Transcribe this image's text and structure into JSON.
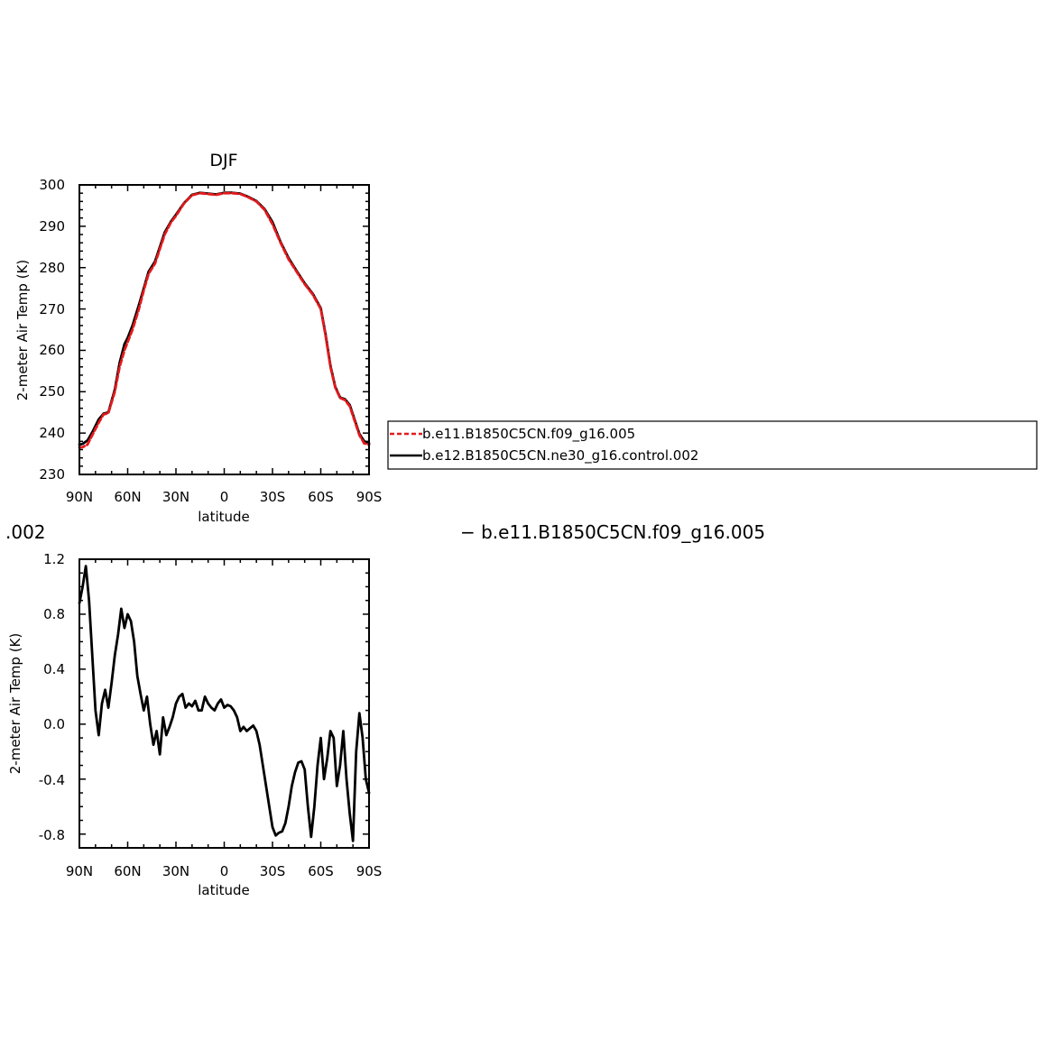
{
  "top": {
    "title": "DJF",
    "ylabel": "2-meter Air Temp (K)",
    "xlabel": "latitude",
    "xticks": [
      "90N",
      "60N",
      "30N",
      "0",
      "30S",
      "60S",
      "90S"
    ],
    "yticks": [
      "300",
      "290",
      "280",
      "270",
      "260",
      "250",
      "240",
      "230"
    ],
    "legend": [
      "b.e11.B1850C5CN.f09_g16.005",
      "b.e12.B1850C5CN.ne30_g16.control.002"
    ]
  },
  "bottom": {
    "ylabel": "2-meter Air Temp (K)",
    "xlabel": "latitude",
    "xticks": [
      "90N",
      "60N",
      "30N",
      "0",
      "30S",
      "60S",
      "90S"
    ],
    "yticks": [
      "1.2",
      "0.8",
      "0.4",
      "0.0",
      "-0.4",
      "-0.8"
    ],
    "title_left_fragment": ".002",
    "title_right_fragment": "− b.e11.B1850C5CN.f09_g16.005"
  },
  "colors": {
    "red_series": "#e41a1c",
    "black_series": "#000000"
  },
  "chart_data": [
    {
      "type": "line",
      "title": "DJF",
      "xlabel": "latitude",
      "ylabel": "2-meter Air Temp (K)",
      "xlim": [
        90,
        -90
      ],
      "ylim": [
        230,
        300
      ],
      "x_note": "latitude in degrees, positive = N, negative = S",
      "series": [
        {
          "name": "b.e11.B1850C5CN.f09_g16.005",
          "color": "#e41a1c",
          "dashed": true,
          "x": [
            90,
            88,
            85,
            82,
            78,
            75,
            72,
            68,
            65,
            62,
            60,
            57,
            53,
            50,
            47,
            43,
            40,
            37,
            33,
            30,
            25,
            20,
            15,
            10,
            5,
            0,
            -5,
            -10,
            -15,
            -20,
            -25,
            -30,
            -35,
            -40,
            -45,
            -50,
            -55,
            -60,
            -63,
            -66,
            -69,
            -72,
            -75,
            -78,
            -81,
            -84,
            -87,
            -90
          ],
          "y": [
            236.5,
            236.6,
            237.2,
            239.5,
            242.5,
            244.5,
            244.8,
            250,
            256,
            260,
            262,
            265,
            270,
            274.5,
            278.5,
            281,
            284.5,
            288,
            291,
            292.5,
            295.5,
            297.5,
            298,
            297.8,
            297.6,
            298,
            298,
            297.8,
            297,
            296,
            294,
            290.5,
            286,
            282,
            279,
            276,
            273.5,
            270,
            263.5,
            256,
            251,
            248.5,
            248,
            246.5,
            243,
            239.5,
            237.5,
            237.2
          ]
        },
        {
          "name": "b.e12.B1850C5CN.ne30_g16.control.002",
          "color": "#000000",
          "dashed": false,
          "x": [
            90,
            88,
            85,
            82,
            78,
            75,
            72,
            68,
            65,
            62,
            60,
            57,
            53,
            50,
            47,
            43,
            40,
            37,
            33,
            30,
            25,
            20,
            15,
            10,
            5,
            0,
            -5,
            -10,
            -15,
            -20,
            -25,
            -30,
            -35,
            -40,
            -45,
            -50,
            -55,
            -60,
            -63,
            -66,
            -69,
            -72,
            -75,
            -78,
            -81,
            -84,
            -87,
            -90
          ],
          "y": [
            237.2,
            237.4,
            238.2,
            240.2,
            243.3,
            244.7,
            245,
            250.5,
            257,
            261.5,
            263,
            266,
            271,
            275,
            279,
            281.5,
            285,
            288.5,
            291.2,
            292.8,
            295.6,
            297.6,
            298.1,
            297.9,
            297.7,
            298.1,
            298.1,
            297.9,
            297.1,
            296.1,
            294.2,
            291,
            286.2,
            282.3,
            279.2,
            276.2,
            273.7,
            270.2,
            263.8,
            256.3,
            251.2,
            248.6,
            248.2,
            246.8,
            243.3,
            239.8,
            238,
            237.5
          ]
        }
      ]
    },
    {
      "type": "line",
      "title": "",
      "xlabel": "latitude",
      "ylabel": "2-meter Air Temp (K)",
      "xlim": [
        90,
        -90
      ],
      "ylim": [
        -0.9,
        1.2
      ],
      "x_note": "latitude in degrees, positive = N, negative = S",
      "series": [
        {
          "name": "",
          "color": "#000000",
          "x": [
            90,
            88,
            86,
            84,
            82,
            80,
            78,
            76,
            74,
            72,
            70,
            68,
            66,
            64,
            62,
            60,
            58,
            56,
            54,
            52,
            50,
            48,
            46,
            44,
            42,
            40,
            38,
            36,
            34,
            32,
            30,
            28,
            26,
            24,
            22,
            20,
            18,
            16,
            14,
            12,
            10,
            8,
            6,
            4,
            2,
            0,
            -2,
            -4,
            -6,
            -8,
            -10,
            -12,
            -14,
            -16,
            -18,
            -20,
            -22,
            -24,
            -26,
            -28,
            -30,
            -32,
            -34,
            -36,
            -38,
            -40,
            -42,
            -44,
            -46,
            -48,
            -50,
            -52,
            -54,
            -56,
            -58,
            -60,
            -62,
            -64,
            -66,
            -68,
            -70,
            -72,
            -74,
            -76,
            -78,
            -80,
            -82,
            -84,
            -86,
            -88,
            -90
          ],
          "y": [
            0.88,
            1.0,
            1.15,
            0.9,
            0.5,
            0.1,
            -0.08,
            0.15,
            0.25,
            0.12,
            0.3,
            0.5,
            0.65,
            0.84,
            0.7,
            0.8,
            0.75,
            0.6,
            0.35,
            0.22,
            0.1,
            0.2,
            0.0,
            -0.15,
            -0.05,
            -0.22,
            0.05,
            -0.08,
            -0.02,
            0.05,
            0.15,
            0.2,
            0.22,
            0.12,
            0.15,
            0.13,
            0.17,
            0.1,
            0.1,
            0.2,
            0.15,
            0.12,
            0.1,
            0.15,
            0.18,
            0.12,
            0.14,
            0.13,
            0.1,
            0.05,
            -0.05,
            -0.02,
            -0.05,
            -0.03,
            -0.01,
            -0.05,
            -0.15,
            -0.3,
            -0.45,
            -0.6,
            -0.75,
            -0.81,
            -0.79,
            -0.78,
            -0.72,
            -0.6,
            -0.45,
            -0.35,
            -0.28,
            -0.27,
            -0.33,
            -0.6,
            -0.82,
            -0.6,
            -0.3,
            -0.1,
            -0.4,
            -0.25,
            -0.05,
            -0.1,
            -0.45,
            -0.3,
            -0.05,
            -0.4,
            -0.65,
            -0.85,
            -0.2,
            0.08,
            -0.1,
            -0.4,
            -0.5
          ]
        }
      ]
    }
  ]
}
